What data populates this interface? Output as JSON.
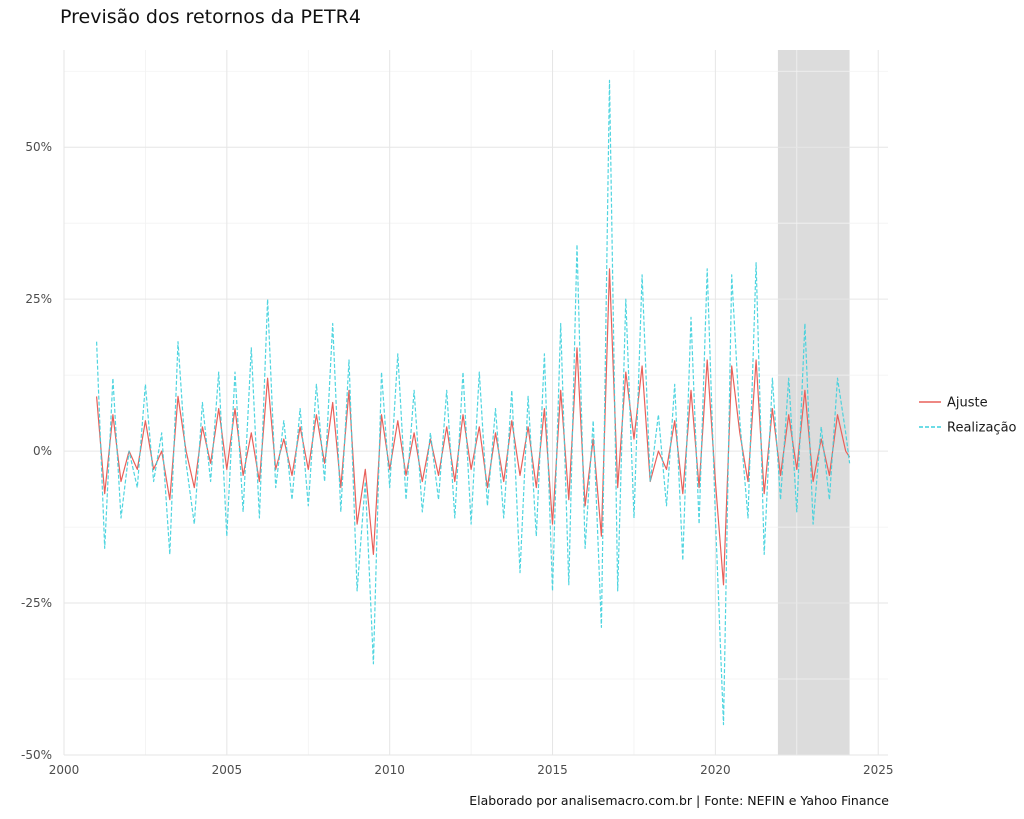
{
  "chart_data": {
    "type": "line",
    "title": "Previsão dos retornos da PETR4",
    "caption": "Elaborado por analisemacro.com.br | Fonte: NEFIN e Yahoo Finance",
    "xlabel": "",
    "ylabel": "",
    "xlim": [
      2000,
      2025.3
    ],
    "ylim": [
      -0.5,
      0.66
    ],
    "x_ticks": [
      2000,
      2005,
      2010,
      2015,
      2020,
      2025
    ],
    "x_tick_labels": [
      "2000",
      "2005",
      "2010",
      "2015",
      "2020",
      "2025"
    ],
    "y_ticks": [
      -0.5,
      -0.25,
      0,
      0.25,
      0.5
    ],
    "y_tick_labels": [
      "-50%",
      "-25%",
      "0%",
      "25%",
      "50%"
    ],
    "grid": true,
    "legend_position": "right",
    "highlight_region": {
      "x_start": 2021.92,
      "x_end": 2024.12,
      "color": "#dcdcdc"
    },
    "series": [
      {
        "name": "Ajuste",
        "color": "#e8605a",
        "dash": "solid",
        "points": [
          [
            2001.0,
            0.09
          ],
          [
            2001.25,
            -0.07
          ],
          [
            2001.5,
            0.06
          ],
          [
            2001.75,
            -0.05
          ],
          [
            2002.0,
            0.0
          ],
          [
            2002.25,
            -0.03
          ],
          [
            2002.5,
            0.05
          ],
          [
            2002.75,
            -0.03
          ],
          [
            2003.0,
            0.0
          ],
          [
            2003.25,
            -0.08
          ],
          [
            2003.5,
            0.09
          ],
          [
            2003.75,
            0.0
          ],
          [
            2004.0,
            -0.06
          ],
          [
            2004.25,
            0.04
          ],
          [
            2004.5,
            -0.02
          ],
          [
            2004.75,
            0.07
          ],
          [
            2005.0,
            -0.03
          ],
          [
            2005.25,
            0.07
          ],
          [
            2005.5,
            -0.04
          ],
          [
            2005.75,
            0.03
          ],
          [
            2006.0,
            -0.05
          ],
          [
            2006.25,
            0.12
          ],
          [
            2006.5,
            -0.03
          ],
          [
            2006.75,
            0.02
          ],
          [
            2007.0,
            -0.04
          ],
          [
            2007.25,
            0.04
          ],
          [
            2007.5,
            -0.03
          ],
          [
            2007.75,
            0.06
          ],
          [
            2008.0,
            -0.02
          ],
          [
            2008.25,
            0.08
          ],
          [
            2008.5,
            -0.06
          ],
          [
            2008.75,
            0.1
          ],
          [
            2009.0,
            -0.12
          ],
          [
            2009.25,
            -0.03
          ],
          [
            2009.5,
            -0.17
          ],
          [
            2009.75,
            0.06
          ],
          [
            2010.0,
            -0.03
          ],
          [
            2010.25,
            0.05
          ],
          [
            2010.5,
            -0.04
          ],
          [
            2010.75,
            0.03
          ],
          [
            2011.0,
            -0.05
          ],
          [
            2011.25,
            0.02
          ],
          [
            2011.5,
            -0.04
          ],
          [
            2011.75,
            0.04
          ],
          [
            2012.0,
            -0.05
          ],
          [
            2012.25,
            0.06
          ],
          [
            2012.5,
            -0.03
          ],
          [
            2012.75,
            0.04
          ],
          [
            2013.0,
            -0.06
          ],
          [
            2013.25,
            0.03
          ],
          [
            2013.5,
            -0.05
          ],
          [
            2013.75,
            0.05
          ],
          [
            2014.0,
            -0.04
          ],
          [
            2014.25,
            0.04
          ],
          [
            2014.5,
            -0.06
          ],
          [
            2014.75,
            0.07
          ],
          [
            2015.0,
            -0.12
          ],
          [
            2015.25,
            0.1
          ],
          [
            2015.5,
            -0.08
          ],
          [
            2015.75,
            0.17
          ],
          [
            2016.0,
            -0.09
          ],
          [
            2016.25,
            0.02
          ],
          [
            2016.5,
            -0.14
          ],
          [
            2016.75,
            0.3
          ],
          [
            2017.0,
            -0.06
          ],
          [
            2017.25,
            0.13
          ],
          [
            2017.5,
            0.02
          ],
          [
            2017.75,
            0.14
          ],
          [
            2018.0,
            -0.05
          ],
          [
            2018.25,
            0.0
          ],
          [
            2018.5,
            -0.03
          ],
          [
            2018.75,
            0.05
          ],
          [
            2019.0,
            -0.07
          ],
          [
            2019.25,
            0.1
          ],
          [
            2019.5,
            -0.06
          ],
          [
            2019.75,
            0.15
          ],
          [
            2020.0,
            -0.05
          ],
          [
            2020.25,
            -0.22
          ],
          [
            2020.5,
            0.14
          ],
          [
            2020.75,
            0.03
          ],
          [
            2021.0,
            -0.05
          ],
          [
            2021.25,
            0.15
          ],
          [
            2021.5,
            -0.07
          ],
          [
            2021.75,
            0.07
          ],
          [
            2022.0,
            -0.04
          ],
          [
            2022.25,
            0.06
          ],
          [
            2022.5,
            -0.03
          ],
          [
            2022.75,
            0.1
          ],
          [
            2023.0,
            -0.05
          ],
          [
            2023.25,
            0.02
          ],
          [
            2023.5,
            -0.04
          ],
          [
            2023.75,
            0.06
          ],
          [
            2024.0,
            0.0
          ],
          [
            2024.12,
            -0.01
          ]
        ]
      },
      {
        "name": "Realização",
        "color": "#3dd0dd",
        "dash": "dashed",
        "points": [
          [
            2001.0,
            0.18
          ],
          [
            2001.25,
            -0.16
          ],
          [
            2001.5,
            0.12
          ],
          [
            2001.75,
            -0.11
          ],
          [
            2002.0,
            0.0
          ],
          [
            2002.25,
            -0.06
          ],
          [
            2002.5,
            0.11
          ],
          [
            2002.75,
            -0.05
          ],
          [
            2003.0,
            0.03
          ],
          [
            2003.25,
            -0.17
          ],
          [
            2003.5,
            0.18
          ],
          [
            2003.75,
            -0.02
          ],
          [
            2004.0,
            -0.12
          ],
          [
            2004.25,
            0.08
          ],
          [
            2004.5,
            -0.05
          ],
          [
            2004.75,
            0.13
          ],
          [
            2005.0,
            -0.14
          ],
          [
            2005.25,
            0.13
          ],
          [
            2005.5,
            -0.1
          ],
          [
            2005.75,
            0.17
          ],
          [
            2006.0,
            -0.11
          ],
          [
            2006.25,
            0.25
          ],
          [
            2006.5,
            -0.06
          ],
          [
            2006.75,
            0.05
          ],
          [
            2007.0,
            -0.08
          ],
          [
            2007.25,
            0.07
          ],
          [
            2007.5,
            -0.09
          ],
          [
            2007.75,
            0.11
          ],
          [
            2008.0,
            -0.05
          ],
          [
            2008.25,
            0.21
          ],
          [
            2008.5,
            -0.1
          ],
          [
            2008.75,
            0.15
          ],
          [
            2009.0,
            -0.23
          ],
          [
            2009.25,
            -0.05
          ],
          [
            2009.5,
            -0.35
          ],
          [
            2009.75,
            0.13
          ],
          [
            2010.0,
            -0.06
          ],
          [
            2010.25,
            0.16
          ],
          [
            2010.5,
            -0.08
          ],
          [
            2010.75,
            0.1
          ],
          [
            2011.0,
            -0.1
          ],
          [
            2011.25,
            0.03
          ],
          [
            2011.5,
            -0.08
          ],
          [
            2011.75,
            0.1
          ],
          [
            2012.0,
            -0.11
          ],
          [
            2012.25,
            0.13
          ],
          [
            2012.5,
            -0.12
          ],
          [
            2012.75,
            0.13
          ],
          [
            2013.0,
            -0.09
          ],
          [
            2013.25,
            0.07
          ],
          [
            2013.5,
            -0.11
          ],
          [
            2013.75,
            0.1
          ],
          [
            2014.0,
            -0.2
          ],
          [
            2014.25,
            0.09
          ],
          [
            2014.5,
            -0.14
          ],
          [
            2014.75,
            0.16
          ],
          [
            2015.0,
            -0.23
          ],
          [
            2015.25,
            0.21
          ],
          [
            2015.5,
            -0.22
          ],
          [
            2015.75,
            0.34
          ],
          [
            2016.0,
            -0.16
          ],
          [
            2016.25,
            0.05
          ],
          [
            2016.5,
            -0.29
          ],
          [
            2016.75,
            0.61
          ],
          [
            2017.0,
            -0.23
          ],
          [
            2017.25,
            0.25
          ],
          [
            2017.5,
            -0.11
          ],
          [
            2017.75,
            0.29
          ],
          [
            2018.0,
            -0.05
          ],
          [
            2018.25,
            0.06
          ],
          [
            2018.5,
            -0.09
          ],
          [
            2018.75,
            0.11
          ],
          [
            2019.0,
            -0.18
          ],
          [
            2019.25,
            0.22
          ],
          [
            2019.5,
            -0.12
          ],
          [
            2019.75,
            0.3
          ],
          [
            2020.0,
            -0.11
          ],
          [
            2020.25,
            -0.45
          ],
          [
            2020.5,
            0.29
          ],
          [
            2020.75,
            0.05
          ],
          [
            2021.0,
            -0.11
          ],
          [
            2021.25,
            0.31
          ],
          [
            2021.5,
            -0.17
          ],
          [
            2021.75,
            0.12
          ],
          [
            2022.0,
            -0.08
          ],
          [
            2022.25,
            0.12
          ],
          [
            2022.5,
            -0.1
          ],
          [
            2022.75,
            0.21
          ],
          [
            2023.0,
            -0.12
          ],
          [
            2023.25,
            0.04
          ],
          [
            2023.5,
            -0.08
          ],
          [
            2023.75,
            0.12
          ],
          [
            2024.0,
            0.03
          ],
          [
            2024.12,
            -0.02
          ]
        ]
      }
    ]
  }
}
